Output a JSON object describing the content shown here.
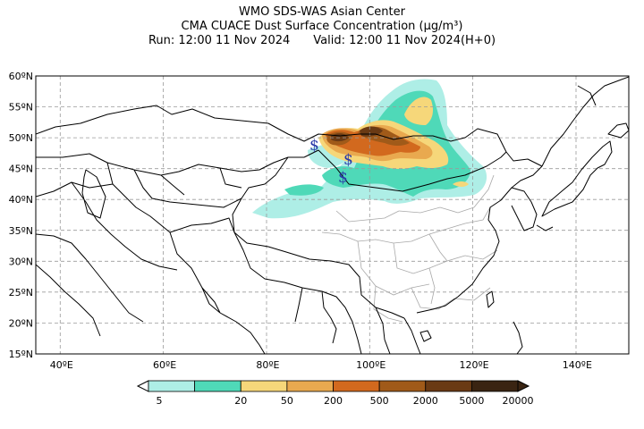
{
  "header": {
    "line1": "WMO SDS-WAS Asian Center",
    "line2": "CMA CUACE Dust Surface Concentration (μg/m³)",
    "run": "Run: 12:00 11 Nov 2024",
    "valid": "Valid: 12:00 11 Nov 2024(H+0)"
  },
  "map": {
    "lon_range": [
      35,
      150
    ],
    "lat_range": [
      15,
      60
    ],
    "lat_ticks": [
      "15ºN",
      "20ºN",
      "25ºN",
      "30ºN",
      "35ºN",
      "40ºN",
      "45ºN",
      "50ºN",
      "55ºN",
      "60ºN"
    ],
    "lon_ticks": [
      "40ºE",
      "60ºE",
      "80ºE",
      "100ºE",
      "120ºE",
      "140ºE"
    ],
    "storm_markers": [
      {
        "symbol": "$",
        "lon": 87.5,
        "lat": 48.5
      },
      {
        "symbol": "$",
        "lon": 94.5,
        "lat": 46.5
      },
      {
        "symbol": "$",
        "lon": 93.5,
        "lat": 43.5
      }
    ]
  },
  "colorbar": {
    "levels": [
      "5",
      "20",
      "50",
      "200",
      "500",
      "2000",
      "5000",
      "20000"
    ],
    "colors": [
      "#aeeee6",
      "#4fd9b8",
      "#f6d77a",
      "#e9a94f",
      "#d2691e",
      "#a05a19",
      "#6a3a14",
      "#3a2412"
    ]
  },
  "colors": {
    "land": "#ffffff",
    "border": "#000000",
    "province": "#a8a8a8",
    "grid": "#9a9a9a",
    "marker": "#2a3aa8"
  }
}
